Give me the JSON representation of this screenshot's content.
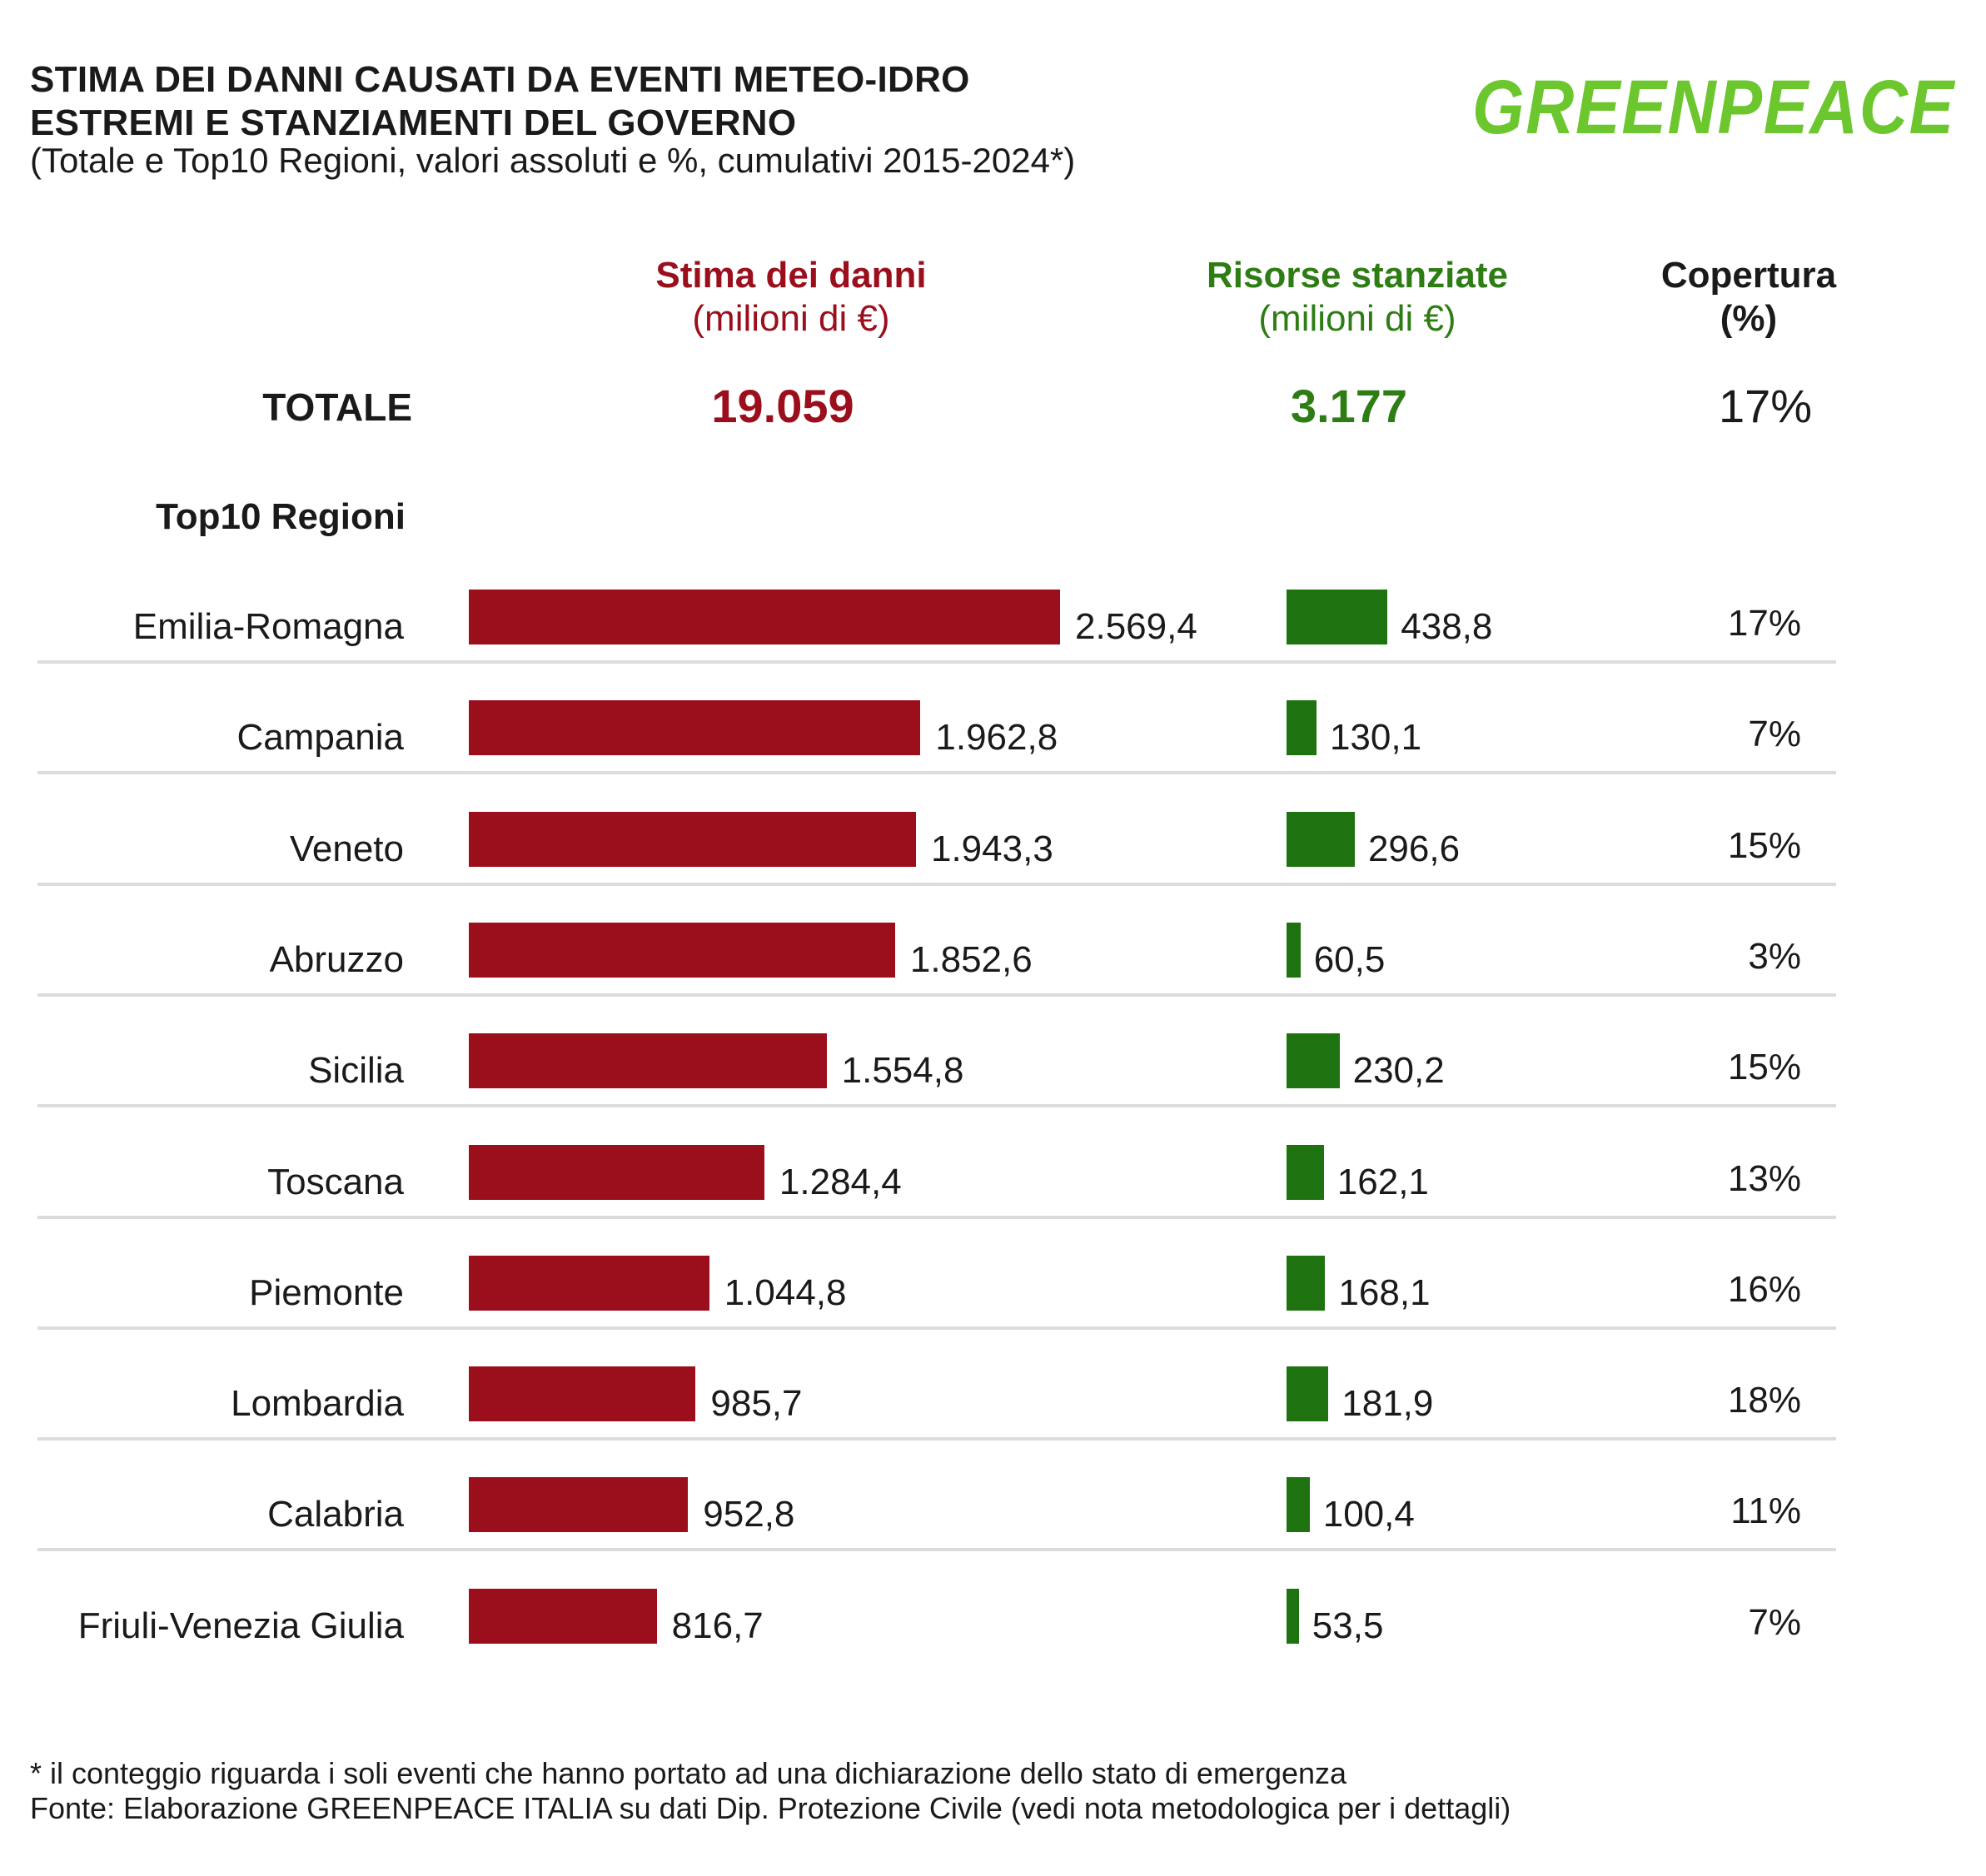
{
  "title_line1": "STIMA DEI DANNI CAUSATI DA EVENTI METEO-IDRO",
  "title_line2": "ESTREMI E STANZIAMENTI DEL GOVERNO",
  "subtitle": "(Totale e Top10 Regioni, valori assoluti e %, cumulativi 2015-2024*)",
  "logo_text": "GREENPEACE",
  "columns": {
    "damage_title": "Stima dei danni",
    "damage_unit": "(milioni di €)",
    "funds_title": "Risorse stanziate",
    "funds_unit": "(milioni di €)",
    "coverage_title": "Copertura",
    "coverage_unit": "(%)"
  },
  "total": {
    "label": "TOTALE",
    "damage": "19.059",
    "funds": "3.177",
    "coverage": "17%"
  },
  "top10_label": "Top10 Regioni",
  "colors": {
    "damage": "#9b0e1c",
    "funds": "#1e7310",
    "logo": "#6cc72e"
  },
  "footnote": "* il conteggio riguarda i soli eventi che hanno portato ad una dichiarazione dello stato di emergenza",
  "source": "Fonte: Elaborazione GREENPEACE ITALIA su dati Dip. Protezione Civile (vedi nota metodologica per i dettagli)",
  "chart_data": {
    "type": "bar",
    "orientation": "horizontal",
    "categories": [
      "Emilia-Romagna",
      "Campania",
      "Veneto",
      "Abruzzo",
      "Sicilia",
      "Toscana",
      "Piemonte",
      "Lombardia",
      "Calabria",
      "Friuli-Venezia Giulia"
    ],
    "series": [
      {
        "name": "Stima dei danni (milioni di €)",
        "values": [
          2569.4,
          1962.8,
          1943.3,
          1852.6,
          1554.8,
          1284.4,
          1044.8,
          985.7,
          952.8,
          816.7
        ],
        "labels": [
          "2.569,4",
          "1.962,8",
          "1.943,3",
          "1.852,6",
          "1.554,8",
          "1.284,4",
          "1.044,8",
          "985,7",
          "952,8",
          "816,7"
        ]
      },
      {
        "name": "Risorse stanziate (milioni di €)",
        "values": [
          438.8,
          130.1,
          296.6,
          60.5,
          230.2,
          162.1,
          168.1,
          181.9,
          100.4,
          53.5
        ],
        "labels": [
          "438,8",
          "130,1",
          "296,6",
          "60,5",
          "230,2",
          "162,1",
          "168,1",
          "181,9",
          "100,4",
          "53,5"
        ]
      },
      {
        "name": "Copertura (%)",
        "values": [
          17,
          7,
          15,
          3,
          15,
          13,
          16,
          18,
          11,
          7
        ],
        "labels": [
          "17%",
          "7%",
          "15%",
          "3%",
          "15%",
          "13%",
          "16%",
          "18%",
          "11%",
          "7%"
        ]
      }
    ],
    "xlim": [
      0,
      2569.4
    ]
  }
}
